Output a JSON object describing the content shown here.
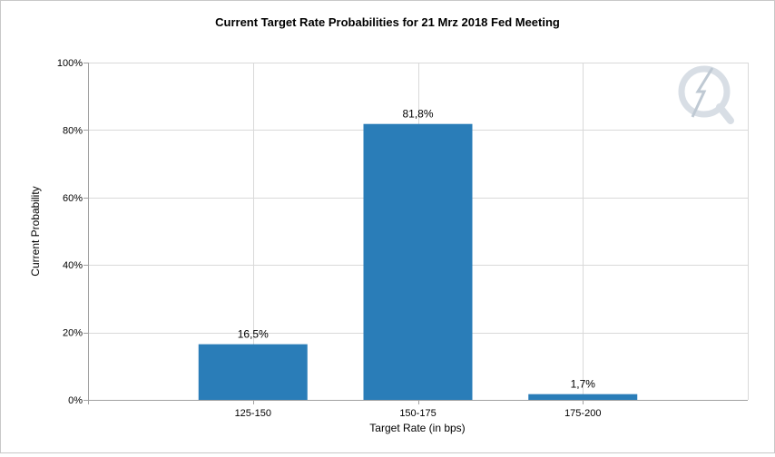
{
  "chart_data": {
    "type": "bar",
    "title": "Current Target Rate Probabilities for 21 Mrz 2018 Fed Meeting",
    "xlabel": "Target Rate (in bps)",
    "ylabel": "Current Probability",
    "categories": [
      "125-150",
      "150-175",
      "175-200"
    ],
    "values": [
      16.5,
      81.8,
      1.7
    ],
    "value_labels": [
      "16,5%",
      "81,8%",
      "1,7%"
    ],
    "y_ticks": [
      0,
      20,
      40,
      60,
      80,
      100
    ],
    "y_tick_labels": [
      "0%",
      "20%",
      "40%",
      "60%",
      "80%",
      "100%"
    ],
    "ylim": [
      0,
      100
    ],
    "grid": true,
    "bar_color": "#2a7db8"
  },
  "watermark": {
    "name": "quikstrike-logo",
    "color": "#d4dbe3"
  }
}
